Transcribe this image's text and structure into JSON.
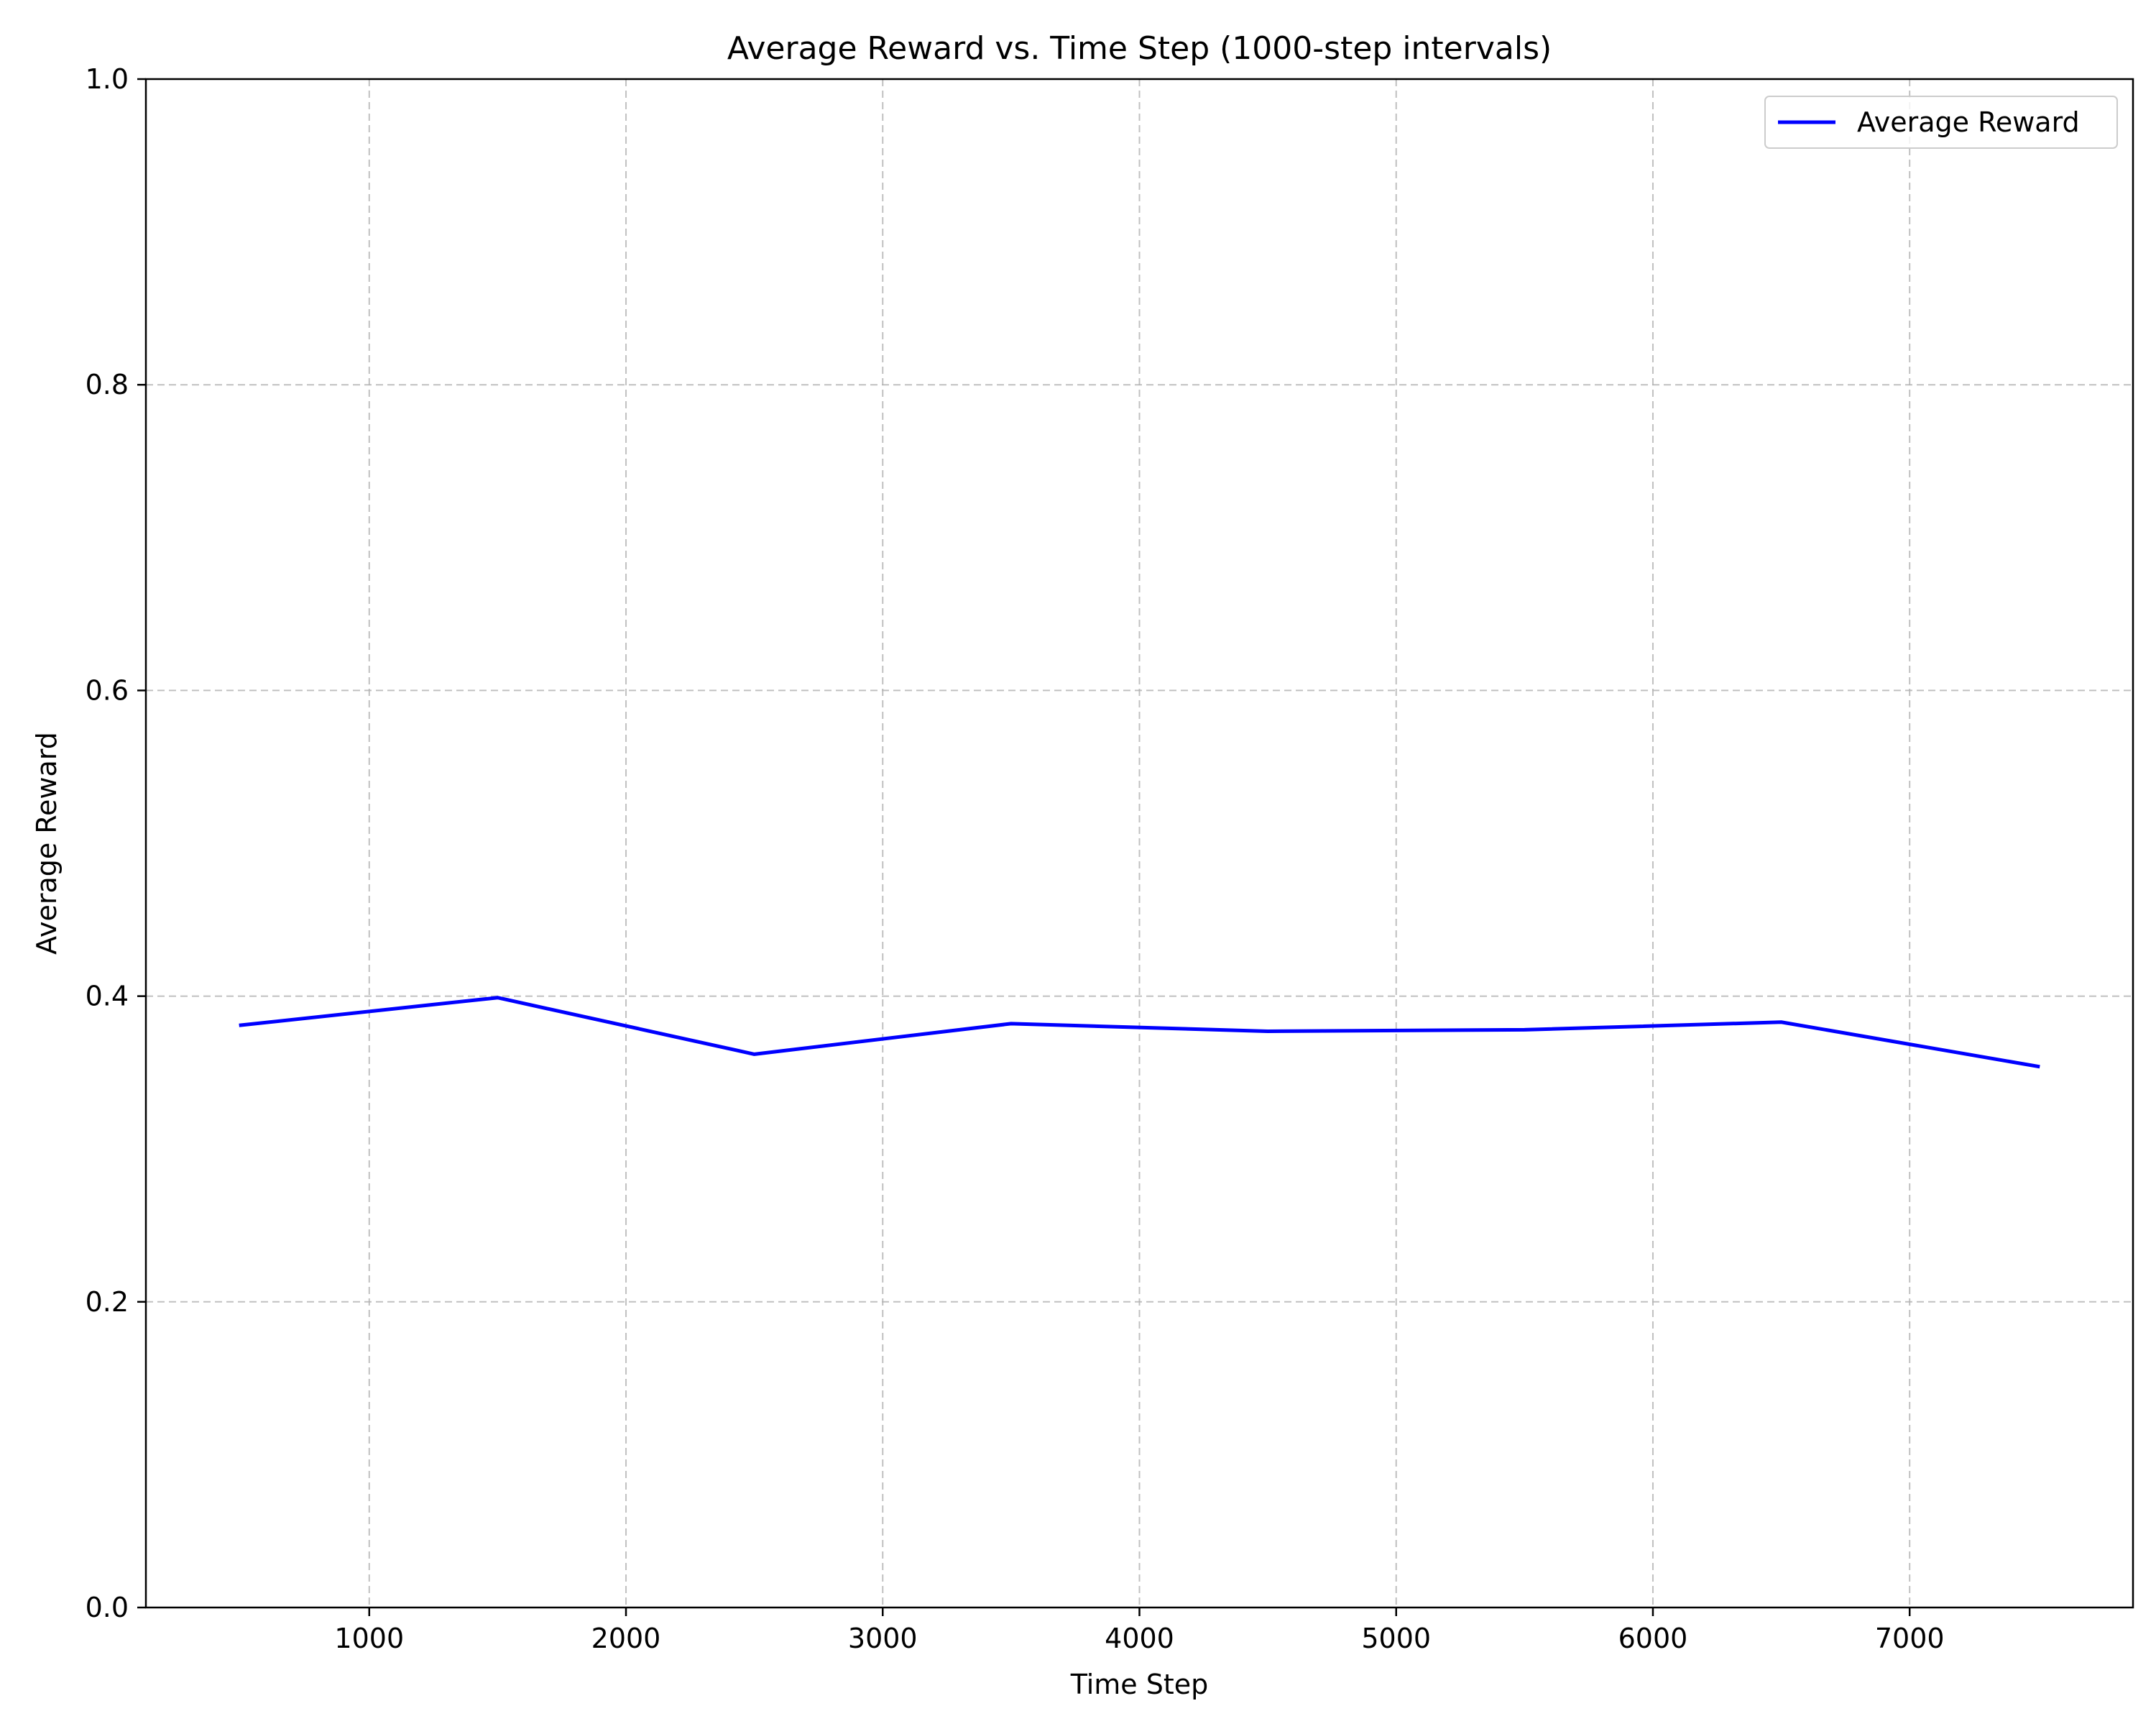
{
  "chart_data": {
    "type": "line",
    "title": "Average Reward vs. Time Step (1000-step intervals)",
    "xlabel": "Time Step",
    "ylabel": "Average Reward",
    "xlim": [
      130,
      7870
    ],
    "ylim": [
      0.0,
      1.0
    ],
    "x_ticks": [
      1000,
      2000,
      3000,
      4000,
      5000,
      6000,
      7000
    ],
    "y_ticks": [
      0.0,
      0.2,
      0.4,
      0.6,
      0.8,
      1.0
    ],
    "x_tick_labels": [
      "1000",
      "2000",
      "3000",
      "4000",
      "5000",
      "6000",
      "7000"
    ],
    "y_tick_labels": [
      "0.0",
      "0.2",
      "0.4",
      "0.6",
      "0.8",
      "1.0"
    ],
    "grid": true,
    "legend_position": "top-right",
    "series": [
      {
        "name": "Average Reward",
        "color": "#0000ff",
        "x": [
          500,
          1500,
          2500,
          3500,
          4500,
          5500,
          6500,
          7500
        ],
        "y": [
          0.381,
          0.399,
          0.362,
          0.382,
          0.377,
          0.378,
          0.383,
          0.354
        ]
      }
    ]
  }
}
